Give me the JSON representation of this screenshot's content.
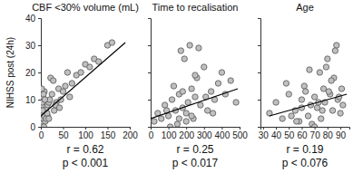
{
  "chart_data": [
    {
      "type": "scatter",
      "title": "CBF <30% volume (mL)",
      "y_label": "NIHSS post (24h)",
      "xlim": [
        0,
        200
      ],
      "xticks": [
        0,
        50,
        100,
        150,
        200
      ],
      "ylim": [
        0,
        40
      ],
      "yticks": [
        0,
        10,
        20,
        30,
        40
      ],
      "annotations": [
        "r = 0.62",
        "p < 0.001"
      ],
      "series": [
        {
          "type": "scatter",
          "color": "#c0c0c0",
          "x": [
            2,
            3,
            5,
            5,
            8,
            10,
            12,
            15,
            18,
            20,
            5,
            8,
            3,
            10,
            25,
            30,
            35,
            40,
            45,
            50,
            55,
            60,
            22,
            28,
            15,
            12,
            7,
            4,
            2,
            6,
            65,
            70,
            80,
            90,
            100,
            110,
            120,
            130,
            150,
            160,
            3,
            9,
            14,
            18,
            33,
            42
          ],
          "values": [
            1,
            2,
            3,
            5,
            4,
            6,
            7,
            8,
            9,
            10,
            11,
            13,
            8,
            2,
            12,
            6,
            9,
            14,
            10,
            13,
            15,
            20,
            18,
            17,
            4,
            3,
            0,
            6,
            14,
            12,
            11,
            16,
            19,
            20,
            23,
            22,
            25,
            24,
            30,
            31,
            9,
            10,
            5,
            3,
            8,
            7
          ]
        },
        {
          "type": "line",
          "color": "#000000",
          "x": [
            0,
            190
          ],
          "values": [
            4,
            31
          ]
        }
      ]
    },
    {
      "type": "scatter",
      "title": "Time to recalisation",
      "tick_labels": "x",
      "xlim": [
        0,
        500
      ],
      "xticks": [
        0,
        100,
        200,
        300,
        400,
        500
      ],
      "ylim": [
        0,
        40
      ],
      "yticks": [
        0,
        10,
        20,
        30,
        40
      ],
      "annotations": [
        "r = 0.25",
        "p < 0.017"
      ],
      "series": [
        {
          "type": "scatter",
          "color": "#c0c0c0",
          "x": [
            20,
            40,
            60,
            80,
            100,
            120,
            140,
            150,
            160,
            180,
            190,
            200,
            210,
            220,
            230,
            240,
            250,
            260,
            280,
            300,
            320,
            340,
            360,
            380,
            400,
            420,
            450,
            480,
            170,
            130,
            110,
            90,
            230,
            270,
            200,
            310,
            350,
            250,
            180,
            160
          ],
          "values": [
            2,
            5,
            3,
            8,
            4,
            10,
            6,
            1,
            12,
            7,
            25,
            5,
            9,
            30,
            14,
            3,
            11,
            18,
            8,
            22,
            6,
            13,
            10,
            16,
            20,
            12,
            17,
            9,
            28,
            15,
            0,
            6,
            4,
            29,
            2,
            11,
            5,
            19,
            13,
            3
          ]
        },
        {
          "type": "line",
          "color": "#000000",
          "x": [
            0,
            490
          ],
          "values": [
            3,
            14
          ]
        }
      ]
    },
    {
      "type": "scatter",
      "title": "Age",
      "tick_labels": "x",
      "xlim": [
        28,
        97
      ],
      "xticks": [
        30,
        40,
        50,
        60,
        70,
        80,
        90
      ],
      "ylim": [
        0,
        40
      ],
      "yticks": [
        0,
        10,
        20,
        30,
        40
      ],
      "annotations": [
        "r = 0.19",
        "p < 0.076"
      ],
      "series": [
        {
          "type": "scatter",
          "color": "#c0c0c0",
          "x": [
            35,
            40,
            45,
            50,
            55,
            58,
            60,
            62,
            65,
            67,
            70,
            72,
            74,
            75,
            77,
            78,
            80,
            82,
            84,
            85,
            87,
            88,
            90,
            92,
            48,
            52,
            63,
            68,
            73,
            79,
            83,
            86,
            89,
            70,
            76,
            81,
            66,
            60,
            56,
            91
          ],
          "values": [
            5,
            9,
            3,
            12,
            6,
            2,
            10,
            15,
            4,
            8,
            11,
            7,
            20,
            3,
            14,
            9,
            25,
            12,
            6,
            18,
            30,
            10,
            5,
            8,
            16,
            4,
            13,
            1,
            9,
            22,
            17,
            28,
            11,
            0,
            6,
            13,
            21,
            7,
            2,
            14
          ]
        },
        {
          "type": "line",
          "color": "#000000",
          "x": [
            35,
            95
          ],
          "values": [
            4,
            12
          ]
        }
      ]
    }
  ]
}
